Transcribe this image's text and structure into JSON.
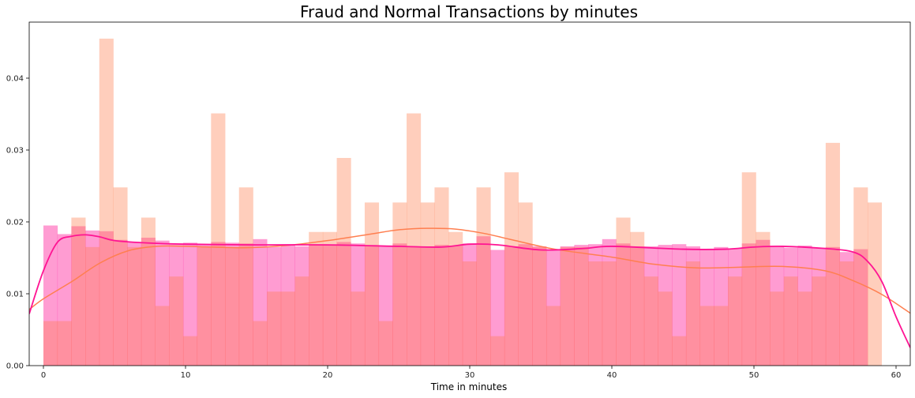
{
  "chart_data": {
    "type": "histogram",
    "title": "Fraud and Normal Transactions by minutes",
    "xlabel": "Time in minutes",
    "ylabel": "",
    "xlim": [
      -1,
      61
    ],
    "ylim": [
      0,
      0.0478
    ],
    "xticks": [
      0,
      10,
      20,
      30,
      40,
      50,
      60
    ],
    "yticks": [
      0.0,
      0.01,
      0.02,
      0.03,
      0.04
    ],
    "ytick_labels": [
      "0.00",
      "0.01",
      "0.02",
      "0.03",
      "0.04"
    ],
    "grid": false,
    "legend": "none",
    "bin_width": 0.983,
    "series": [
      {
        "label_key": "normal",
        "color": "#FF1493",
        "bar_opacity": 0.42,
        "values": [
          0.0195,
          0.0183,
          0.0194,
          0.0188,
          0.0187,
          0.0175,
          0.0172,
          0.0178,
          0.0174,
          0.0169,
          0.0171,
          0.0168,
          0.0172,
          0.0171,
          0.017,
          0.0176,
          0.0165,
          0.0168,
          0.0166,
          0.0168,
          0.0168,
          0.0172,
          0.017,
          0.0167,
          0.0166,
          0.017,
          0.0166,
          0.0166,
          0.0168,
          0.0167,
          0.017,
          0.018,
          0.0161,
          0.0166,
          0.0169,
          0.0166,
          0.0162,
          0.0166,
          0.0168,
          0.0169,
          0.0176,
          0.017,
          0.0166,
          0.0166,
          0.0168,
          0.0169,
          0.0166,
          0.0161,
          0.0165,
          0.0163,
          0.017,
          0.0175,
          0.0167,
          0.0164,
          0.0167,
          0.0164,
          0.0165,
          0.0158,
          0.0162
        ],
        "kde": [
          [
            -1,
            0.0072
          ],
          [
            0,
            0.0132
          ],
          [
            1,
            0.0172
          ],
          [
            2,
            0.018
          ],
          [
            3,
            0.0182
          ],
          [
            4,
            0.0179
          ],
          [
            5,
            0.0174
          ],
          [
            7,
            0.0171
          ],
          [
            10,
            0.0169
          ],
          [
            15,
            0.0168
          ],
          [
            20,
            0.0168
          ],
          [
            25,
            0.0166
          ],
          [
            28,
            0.0165
          ],
          [
            30,
            0.0169
          ],
          [
            32,
            0.0168
          ],
          [
            35,
            0.0161
          ],
          [
            38,
            0.0163
          ],
          [
            40,
            0.0166
          ],
          [
            45,
            0.0162
          ],
          [
            48,
            0.0162
          ],
          [
            50,
            0.0165
          ],
          [
            52,
            0.0166
          ],
          [
            55,
            0.0163
          ],
          [
            57,
            0.0158
          ],
          [
            58,
            0.0145
          ],
          [
            59,
            0.0117
          ],
          [
            60,
            0.0068
          ],
          [
            61,
            0.0025
          ]
        ]
      },
      {
        "label_key": "fraud",
        "color": "#FF7F50",
        "bar_opacity": 0.38,
        "values": [
          0.0062,
          0.0062,
          0.0206,
          0.0165,
          0.0455,
          0.0248,
          0.0165,
          0.0206,
          0.0083,
          0.0124,
          0.0041,
          0.0165,
          0.0351,
          0.0165,
          0.0248,
          0.0062,
          0.0103,
          0.0103,
          0.0124,
          0.0186,
          0.0186,
          0.0289,
          0.0103,
          0.0227,
          0.0062,
          0.0227,
          0.0351,
          0.0227,
          0.0248,
          0.0186,
          0.0145,
          0.0248,
          0.0041,
          0.0269,
          0.0227,
          0.0165,
          0.0083,
          0.0165,
          0.0165,
          0.0145,
          0.0145,
          0.0206,
          0.0186,
          0.0124,
          0.0103,
          0.0041,
          0.0145,
          0.0083,
          0.0083,
          0.0124,
          0.0269,
          0.0186,
          0.0103,
          0.0124,
          0.0103,
          0.0124,
          0.031,
          0.0145,
          0.0248,
          0.0227
        ],
        "kde": [
          [
            -1,
            0.0078
          ],
          [
            0,
            0.0093
          ],
          [
            2,
            0.0117
          ],
          [
            4,
            0.0143
          ],
          [
            6,
            0.016
          ],
          [
            8,
            0.0166
          ],
          [
            10,
            0.0166
          ],
          [
            14,
            0.0164
          ],
          [
            17,
            0.0167
          ],
          [
            20,
            0.0174
          ],
          [
            23,
            0.0183
          ],
          [
            25,
            0.0189
          ],
          [
            27,
            0.0191
          ],
          [
            29,
            0.019
          ],
          [
            31,
            0.0184
          ],
          [
            33,
            0.0175
          ],
          [
            36,
            0.0162
          ],
          [
            40,
            0.0151
          ],
          [
            43,
            0.0141
          ],
          [
            46,
            0.0136
          ],
          [
            49,
            0.0137
          ],
          [
            52,
            0.0138
          ],
          [
            55,
            0.0132
          ],
          [
            57,
            0.0118
          ],
          [
            59,
            0.0099
          ],
          [
            61,
            0.0073
          ]
        ]
      }
    ]
  }
}
